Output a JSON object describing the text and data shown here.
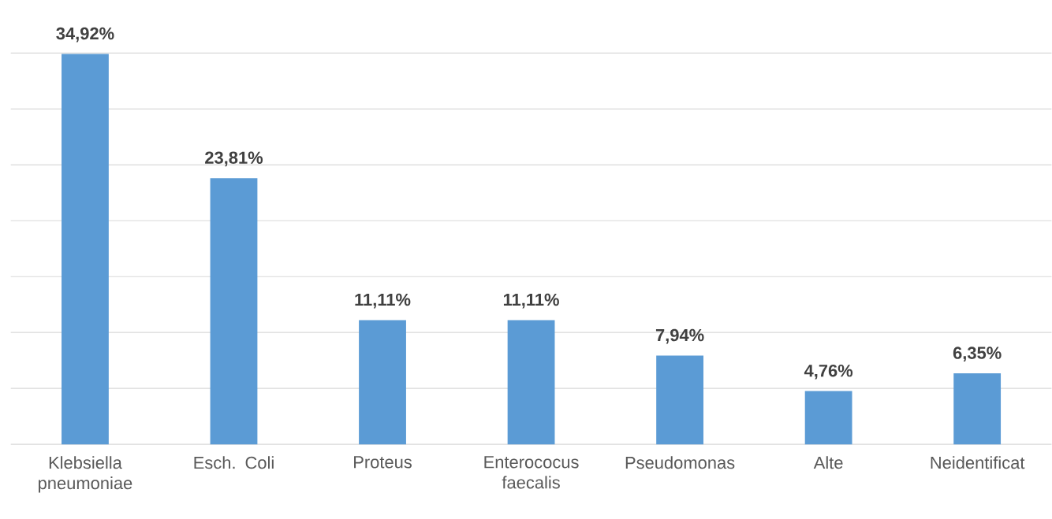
{
  "chart_data": {
    "type": "bar",
    "categories": [
      "Klebsiella pneumoniae",
      "Esch. Coli",
      "Proteus",
      "Enterococus faecalis",
      "Pseudomonas",
      "Alte",
      "Neidentificat"
    ],
    "values": [
      34.92,
      23.81,
      11.11,
      11.11,
      7.94,
      4.76,
      6.35
    ],
    "value_labels": [
      "34,92%",
      "23,81%",
      "11,11%",
      "11,11%",
      "7,94%",
      "4,76%",
      "6,35%"
    ],
    "color": "#5b9bd5",
    "grid": "y",
    "tick_labels": "x"
  }
}
